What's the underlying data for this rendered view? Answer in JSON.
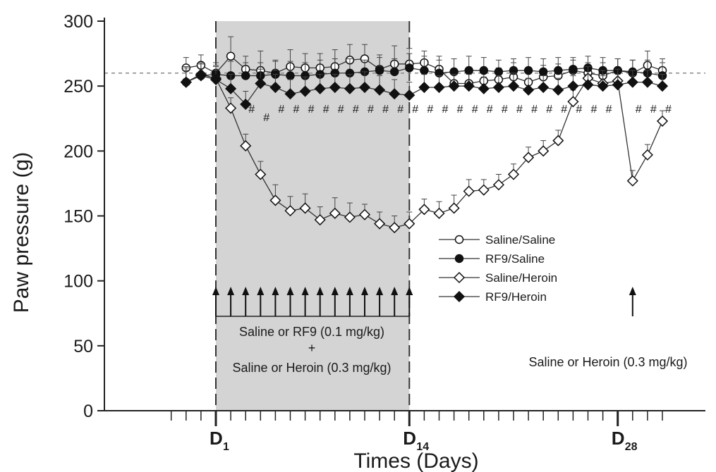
{
  "chart_data": {
    "type": "line",
    "title": "",
    "xlabel": "Times (Days)",
    "ylabel": "Paw pressure (g)",
    "ylim": [
      0,
      300
    ],
    "yticks": [
      0,
      50,
      100,
      150,
      200,
      250,
      300
    ],
    "xlim": [
      -2,
      31
    ],
    "x_day_markers": [
      {
        "day": 1,
        "label": "D",
        "sub": "1"
      },
      {
        "day": 14,
        "label": "D",
        "sub": "14"
      },
      {
        "day": 28,
        "label": "D",
        "sub": "28"
      }
    ],
    "reference_line": 260,
    "shaded_region": [
      1,
      14
    ],
    "x": [
      -1,
      0,
      1,
      2,
      3,
      4,
      5,
      6,
      7,
      8,
      9,
      10,
      11,
      12,
      13,
      14,
      15,
      16,
      17,
      18,
      19,
      20,
      21,
      22,
      23,
      24,
      25,
      26,
      27,
      28,
      29,
      30,
      31
    ],
    "series": [
      {
        "name": "Saline/Saline",
        "marker": "circle-open",
        "values": [
          264,
          266,
          260,
          273,
          263,
          262,
          260,
          265,
          264,
          264,
          265,
          270,
          271,
          263,
          267,
          267,
          268,
          263,
          252,
          252,
          254,
          255,
          257,
          253,
          257,
          258,
          262,
          260,
          258,
          262,
          260,
          266,
          262
        ],
        "error": [
          8,
          8,
          8,
          15,
          10,
          15,
          10,
          13,
          11,
          11,
          13,
          12,
          11,
          11,
          14,
          12,
          9,
          10,
          9,
          10,
          9,
          9,
          11,
          10,
          9,
          9,
          8,
          8,
          10,
          9,
          10,
          11,
          9
        ]
      },
      {
        "name": "RF9/Saline",
        "marker": "circle-filled",
        "values": [
          253,
          258,
          259,
          258,
          258,
          258,
          259,
          258,
          258,
          259,
          260,
          260,
          261,
          262,
          261,
          264,
          262,
          260,
          261,
          262,
          262,
          261,
          262,
          262,
          261,
          262,
          263,
          264,
          262,
          262,
          261,
          260,
          258
        ],
        "error": [
          11,
          10,
          9,
          11,
          10,
          10,
          10,
          11,
          10,
          11,
          11,
          11,
          9,
          10,
          10,
          11,
          11,
          10,
          10,
          11,
          10,
          9,
          9,
          10,
          10,
          10,
          9,
          9,
          10,
          9,
          9,
          10,
          10
        ]
      },
      {
        "name": "Saline/Heroin",
        "marker": "diamond-open",
        "values": [
          253,
          259,
          256,
          233,
          204,
          182,
          162,
          154,
          156,
          147,
          152,
          149,
          151,
          144,
          141,
          144,
          155,
          152,
          156,
          169,
          170,
          174,
          182,
          195,
          200,
          208,
          238,
          256,
          252,
          254,
          177,
          197,
          223
        ],
        "error": [
          9,
          8,
          10,
          8,
          9,
          10,
          12,
          11,
          11,
          10,
          12,
          11,
          8,
          9,
          9,
          9,
          8,
          9,
          10,
          9,
          8,
          8,
          8,
          8,
          8,
          8,
          9,
          9,
          10,
          9,
          8,
          8,
          8
        ]
      },
      {
        "name": "RF9/Heroin",
        "marker": "diamond-filled",
        "values": [
          253,
          258,
          255,
          248,
          236,
          252,
          249,
          244,
          246,
          248,
          249,
          248,
          249,
          247,
          244,
          243,
          249,
          249,
          250,
          250,
          248,
          249,
          250,
          247,
          249,
          247,
          250,
          251,
          250,
          251,
          253,
          253,
          250
        ],
        "error": [
          12,
          10,
          10,
          11,
          10,
          11,
          10,
          11,
          11,
          11,
          10,
          11,
          12,
          11,
          11,
          10,
          10,
          9,
          9,
          9,
          9,
          9,
          10,
          9,
          9,
          9,
          8,
          8,
          8,
          8,
          9,
          9,
          9
        ]
      }
    ],
    "hash_marks": {
      "symbol": "#",
      "days": [
        3,
        4,
        5,
        6,
        7,
        8,
        9,
        10,
        11,
        12,
        13,
        14,
        15,
        16,
        17,
        18,
        19,
        20,
        21,
        22,
        23,
        24,
        25,
        26,
        27,
        29,
        30,
        31
      ]
    },
    "injection_days": [
      1,
      2,
      3,
      4,
      5,
      6,
      7,
      8,
      9,
      10,
      11,
      12,
      13,
      14
    ],
    "challenge_day": 29,
    "annotations": {
      "treatment_line1": "Saline or RF9 (0.1 mg/kg)",
      "treatment_plus": "+",
      "treatment_line2": "Saline or Heroin (0.3 mg/kg)",
      "challenge": "Saline or Heroin (0.3 mg/kg)"
    },
    "legend_position": "right-center",
    "grid": false
  }
}
